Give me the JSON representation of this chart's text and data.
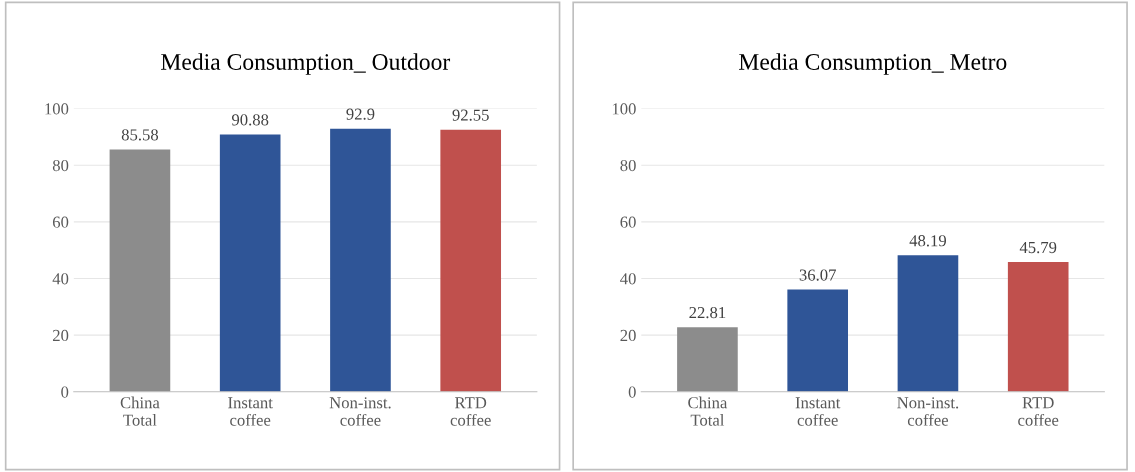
{
  "chart_data": [
    {
      "type": "bar",
      "title": "Media Consumption_ Outdoor",
      "categories": [
        "China\nTotal",
        "Instant\ncoffee",
        "Non-inst.\ncoffee",
        "RTD\ncoffee"
      ],
      "values": [
        85.58,
        90.88,
        92.9,
        92.55
      ],
      "colors": [
        "#8c8c8c",
        "#2f5597",
        "#2f5597",
        "#c0504d"
      ],
      "data_labels": true,
      "ylim": [
        0,
        100
      ],
      "yticks": [
        0,
        20,
        40,
        60,
        80,
        100
      ],
      "grid": "y"
    },
    {
      "type": "bar",
      "title": "Media Consumption_ Metro",
      "categories": [
        "China\nTotal",
        "Instant\ncoffee",
        "Non-inst.\ncoffee",
        "RTD\ncoffee"
      ],
      "values": [
        22.81,
        36.07,
        48.19,
        45.79
      ],
      "colors": [
        "#8c8c8c",
        "#2f5597",
        "#2f5597",
        "#c0504d"
      ],
      "data_labels": true,
      "ylim": [
        0,
        100
      ],
      "yticks": [
        0,
        20,
        40,
        60,
        80,
        100
      ],
      "grid": "y"
    }
  ]
}
